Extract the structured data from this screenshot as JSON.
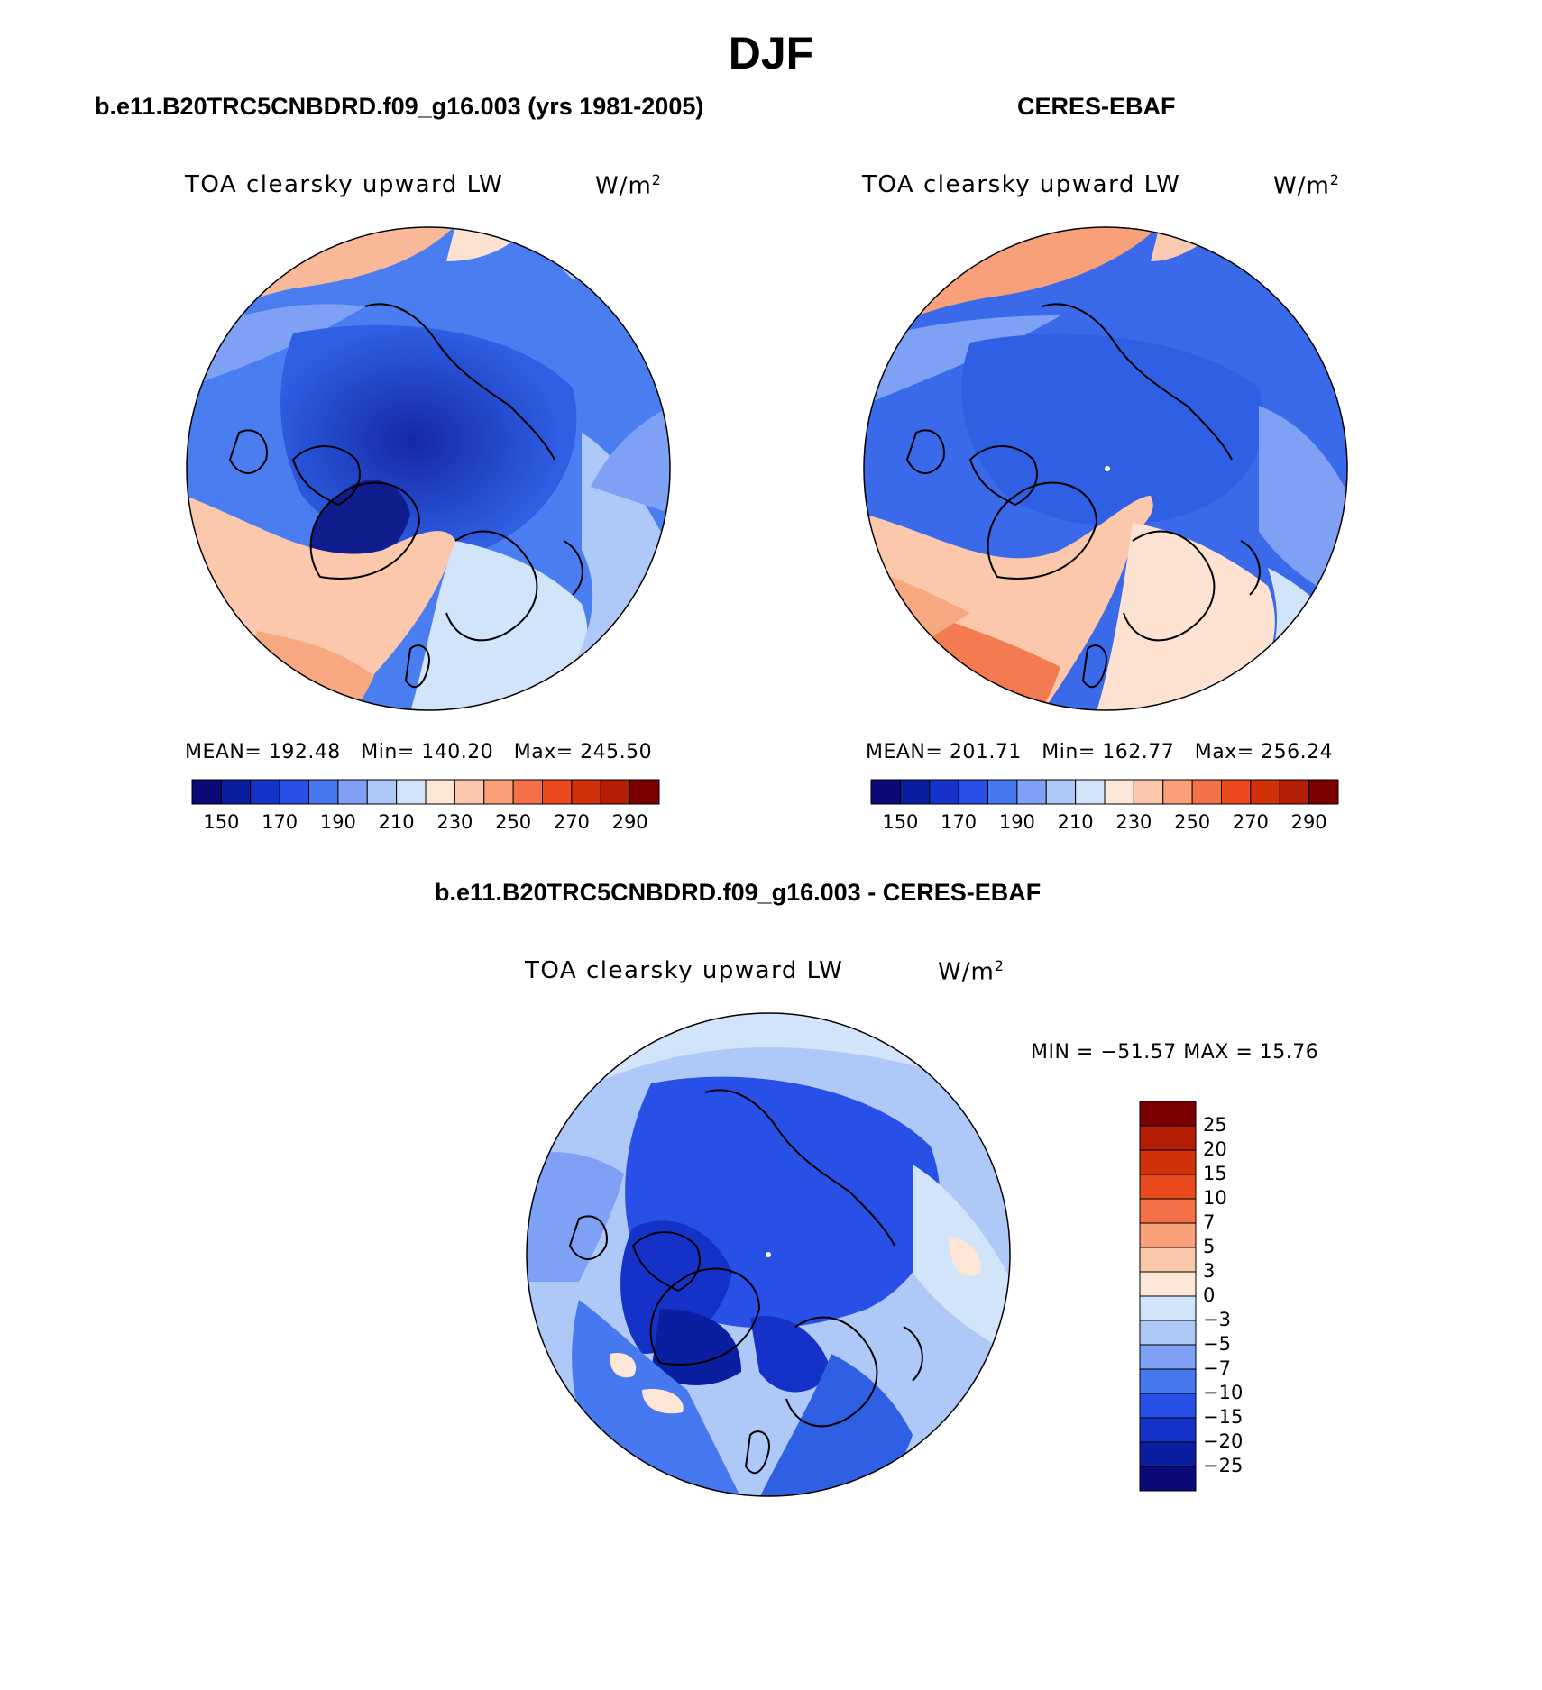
{
  "title": "DJF",
  "panels": [
    {
      "title": "b.e11.B20TRC5CNBDRD.f09_g16.003 (yrs 1981-2005)",
      "variable": "TOA clearsky upward LW",
      "units": "W/m",
      "units_exp": "2",
      "mean_label": "MEAN=",
      "mean": "192.48",
      "min_label": "Min=",
      "min": "140.20",
      "max_label": "Max=",
      "max": "245.50"
    },
    {
      "title": "CERES-EBAF",
      "variable": "TOA clearsky upward LW",
      "units": "W/m",
      "units_exp": "2",
      "mean_label": "MEAN=",
      "mean": "201.71",
      "min_label": "Min=",
      "min": "162.77",
      "max_label": "Max=",
      "max": "256.24"
    },
    {
      "title": "b.e11.B20TRC5CNBDRD.f09_g16.003 - CERES-EBAF",
      "variable": "TOA clearsky upward LW",
      "units": "W/m",
      "units_exp": "2",
      "minmax": "MIN = −51.57 MAX =  15.76"
    }
  ],
  "abs_colorbar": {
    "tick_labels": [
      "150",
      "170",
      "190",
      "210",
      "230",
      "250",
      "270",
      "290"
    ],
    "colors": [
      "#0a0a78",
      "#0a1ea0",
      "#1432c8",
      "#2850e6",
      "#4678f0",
      "#7ea0f5",
      "#aec8f8",
      "#d2e4fa",
      "#fde6d6",
      "#fcc8ac",
      "#f9a078",
      "#f47046",
      "#eb4a1e",
      "#d2320a",
      "#b41e05",
      "#7d0000"
    ]
  },
  "diff_colorbar": {
    "tick_labels": [
      "25",
      "20",
      "15",
      "10",
      "7",
      "5",
      "3",
      "0",
      "−3",
      "−5",
      "−7",
      "−10",
      "−15",
      "−20",
      "−25"
    ],
    "colors": [
      "#7d0000",
      "#b41e05",
      "#d2320a",
      "#eb4a1e",
      "#f47046",
      "#f9a078",
      "#fcc8ac",
      "#fde6d6",
      "#d2e4fa",
      "#aec8f8",
      "#7ea0f5",
      "#4678f0",
      "#2850e6",
      "#1432c8",
      "#0a1ea0",
      "#0a0a78"
    ]
  },
  "map_colors": {
    "deep": "#1a33b3",
    "mid": "#2f5fe3",
    "light": "#7ea0f5",
    "pale": "#c8dcf9",
    "warm_pale": "#fbd8c4",
    "warm": "#f8b090",
    "hot": "#f07848",
    "coast": "#000000"
  }
}
